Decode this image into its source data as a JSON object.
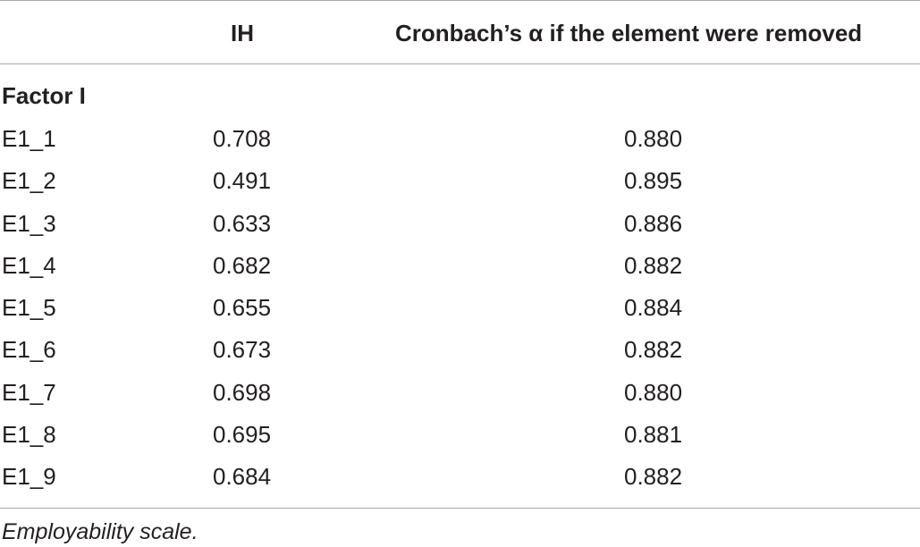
{
  "table": {
    "headers": {
      "item": "",
      "ih": "IH",
      "alpha": "Cronbach’s α if the element were removed"
    },
    "section": "Factor I",
    "rows": [
      {
        "item": "E1_1",
        "ih": "0.708",
        "alpha": "0.880"
      },
      {
        "item": "E1_2",
        "ih": "0.491",
        "alpha": "0.895"
      },
      {
        "item": "E1_3",
        "ih": "0.633",
        "alpha": "0.886"
      },
      {
        "item": "E1_4",
        "ih": "0.682",
        "alpha": "0.882"
      },
      {
        "item": "E1_5",
        "ih": "0.655",
        "alpha": "0.884"
      },
      {
        "item": "E1_6",
        "ih": "0.673",
        "alpha": "0.882"
      },
      {
        "item": "E1_7",
        "ih": "0.698",
        "alpha": "0.880"
      },
      {
        "item": "E1_8",
        "ih": "0.695",
        "alpha": "0.881"
      },
      {
        "item": "E1_9",
        "ih": "0.684",
        "alpha": "0.882"
      }
    ],
    "footnote": "Employability scale."
  }
}
